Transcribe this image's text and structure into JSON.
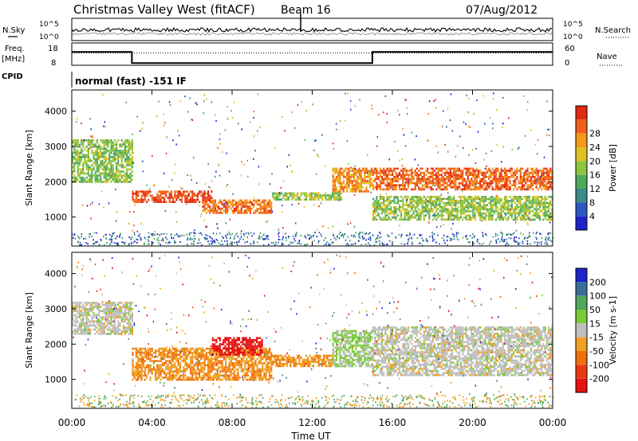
{
  "header": {
    "title": "Christmas Valley West (fitACF)",
    "beam": "Beam 16",
    "date": "07/Aug/2012"
  },
  "noise_panel": {
    "left_label": "N.Sky",
    "right_label": "N.Search",
    "left_ticks": [
      "10^5",
      "10^0"
    ],
    "right_ticks": [
      "10^5",
      "10^0"
    ]
  },
  "freq_panel": {
    "left_label_line1": "Freq.",
    "left_label_line2": "[MHz]",
    "right_label": "Nave",
    "left_ticks": [
      "18",
      "8"
    ],
    "right_ticks": [
      "60",
      "0"
    ],
    "freq_mhz": [
      {
        "from_h": 0,
        "to_h": 3,
        "value": 14
      },
      {
        "from_h": 3,
        "to_h": 15,
        "value": 9
      },
      {
        "from_h": 15,
        "to_h": 24,
        "value": 14
      }
    ],
    "nave_level": 0.55
  },
  "cpid": {
    "label": "CPID",
    "mode": "normal (fast) -151 IF"
  },
  "power_panel": {
    "ylabel": "Slant Range [km]",
    "yticks": [
      "1000",
      "2000",
      "3000",
      "4000"
    ],
    "colorbar_label": "Power [dB]",
    "colorbar_ticks": [
      "4",
      "8",
      "12",
      "16",
      "20",
      "24",
      "28"
    ],
    "colors": [
      "#1f22c9",
      "#2a57c0",
      "#3c8a8a",
      "#4fa85c",
      "#8cc63f",
      "#e0c020",
      "#f59a18",
      "#f0601a",
      "#e32914"
    ]
  },
  "velocity_panel": {
    "ylabel": "Slant Range [km]",
    "yticks": [
      "1000",
      "2000",
      "3000",
      "4000"
    ],
    "colorbar_label": "Velocity [m s-1]",
    "colorbar_ticks": [
      "200",
      "100",
      "50",
      "15",
      "-15",
      "-50",
      "-100",
      "-200"
    ],
    "colors": [
      "#1f22c9",
      "#3a6f9a",
      "#4fa85c",
      "#7acb3a",
      "#bfbfbf",
      "#f0a020",
      "#f07010",
      "#e83a10",
      "#e51010"
    ]
  },
  "x_axis": {
    "xlabel": "Time UT",
    "ticks": [
      "00:00",
      "04:00",
      "08:00",
      "12:00",
      "16:00",
      "20:00",
      "00:00"
    ]
  },
  "chart_data": {
    "type": "heatmap",
    "title": "Christmas Valley West (fitACF)",
    "subtitle": "Beam 16",
    "date": "07/Aug/2012",
    "xlabel": "Time UT",
    "xlim_hours": [
      0,
      24
    ],
    "ylabel": "Slant Range [km]",
    "ylim": [
      180,
      4600
    ],
    "panels": [
      {
        "name": "Power",
        "unit": "dB",
        "colorbar_range": [
          0,
          30
        ],
        "features": [
          {
            "from_h": 0,
            "to_h": 3,
            "range_km": [
              2000,
              3200
            ],
            "value": 14
          },
          {
            "from_h": 3,
            "to_h": 7,
            "range_km": [
              1450,
              1750
            ],
            "value": 27
          },
          {
            "from_h": 6.5,
            "to_h": 10,
            "range_km": [
              1100,
              1500
            ],
            "value": 24
          },
          {
            "from_h": 10,
            "to_h": 13.5,
            "range_km": [
              1500,
              1700
            ],
            "value": 15
          },
          {
            "from_h": 13,
            "to_h": 15,
            "range_km": [
              1700,
              2400
            ],
            "value": 22
          },
          {
            "from_h": 15,
            "to_h": 24,
            "range_km": [
              1800,
              2400
            ],
            "value": 25
          },
          {
            "from_h": 15,
            "to_h": 24,
            "range_km": [
              900,
              1600
            ],
            "value": 15
          }
        ]
      },
      {
        "name": "Velocity",
        "unit": "m s-1",
        "colorbar_range": [
          -200,
          200
        ],
        "features": [
          {
            "from_h": 0,
            "to_h": 3,
            "range_km": [
              2300,
              3200
            ],
            "value": 0
          },
          {
            "from_h": 3,
            "to_h": 10,
            "range_km": [
              1000,
              1900
            ],
            "value": -60
          },
          {
            "from_h": 7,
            "to_h": 9.5,
            "range_km": [
              1700,
              2200
            ],
            "value": -180
          },
          {
            "from_h": 10,
            "to_h": 13,
            "range_km": [
              1400,
              1700
            ],
            "value": -60
          },
          {
            "from_h": 13,
            "to_h": 15,
            "range_km": [
              1400,
              2400
            ],
            "value": 30
          },
          {
            "from_h": 15,
            "to_h": 24,
            "range_km": [
              1100,
              2500
            ],
            "value": 0
          }
        ]
      }
    ]
  }
}
